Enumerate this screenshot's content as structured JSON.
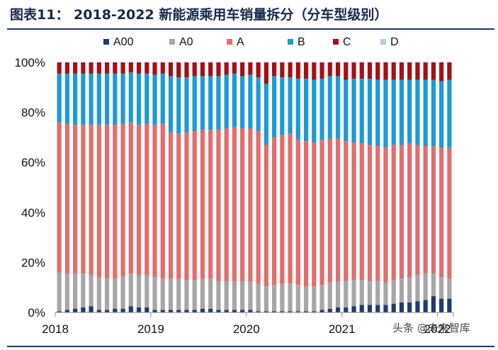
{
  "header": {
    "title": "图表11：  2018-2022 新能源乘用车销量拆分（分车型级别）"
  },
  "watermark": {
    "text": "头条 @未来智库"
  },
  "chart_data": {
    "type": "stacked-bar",
    "title": "2018-2022 新能源乘用车销量拆分（分车型级别）",
    "xlabel": "",
    "ylabel": "",
    "ylim": [
      0,
      100
    ],
    "yticks": [
      0,
      20,
      40,
      60,
      80,
      100
    ],
    "ytick_labels": [
      "0%",
      "20%",
      "40%",
      "60%",
      "80%",
      "100%"
    ],
    "xtick_labels": [
      "2018",
      "2019",
      "2020",
      "2021",
      "2022"
    ],
    "xtick_at_index": [
      0,
      12,
      24,
      36,
      48
    ],
    "legend_position": "top",
    "categories": [
      "2018-01",
      "2018-02",
      "2018-03",
      "2018-04",
      "2018-05",
      "2018-06",
      "2018-07",
      "2018-08",
      "2018-09",
      "2018-10",
      "2018-11",
      "2018-12",
      "2019-01",
      "2019-02",
      "2019-03",
      "2019-04",
      "2019-05",
      "2019-06",
      "2019-07",
      "2019-08",
      "2019-09",
      "2019-10",
      "2019-11",
      "2019-12",
      "2020-01",
      "2020-02",
      "2020-03",
      "2020-04",
      "2020-05",
      "2020-06",
      "2020-07",
      "2020-08",
      "2020-09",
      "2020-10",
      "2020-11",
      "2020-12",
      "2021-01",
      "2021-02",
      "2021-03",
      "2021-04",
      "2021-05",
      "2021-06",
      "2021-07",
      "2021-08",
      "2021-09",
      "2021-10",
      "2021-11",
      "2021-12",
      "2022-01",
      "2022-02"
    ],
    "series": [
      {
        "name": "A00",
        "color": "#1f3b73",
        "values": [
          0.5,
          1,
          1.5,
          2,
          2.5,
          1,
          1,
          1.5,
          1.5,
          2.5,
          2,
          2,
          1,
          1,
          1,
          1,
          1,
          1,
          1.5,
          1.5,
          1,
          1,
          1,
          1,
          1,
          0.5,
          0.5,
          0.5,
          0.5,
          0.5,
          0.5,
          0.5,
          0.5,
          1,
          1.5,
          2,
          2,
          2.5,
          3,
          3,
          3,
          3,
          3.5,
          4,
          4,
          4.5,
          5,
          6.5,
          5.5,
          5.5
        ]
      },
      {
        "name": "A0",
        "color": "#a6a6a6",
        "values": [
          15.5,
          14.5,
          14,
          13.5,
          12.5,
          13,
          12.5,
          12,
          13,
          13,
          13,
          13,
          13,
          12.5,
          12.5,
          12.5,
          12,
          12,
          12,
          12,
          11.5,
          11.5,
          11.5,
          11.5,
          11.5,
          11,
          10,
          10.5,
          11,
          11,
          10.5,
          10,
          10,
          10,
          10.5,
          10.5,
          10.5,
          10.5,
          10,
          9.5,
          9.5,
          9,
          9.5,
          9.5,
          10,
          10.5,
          10.5,
          9,
          8.5,
          8
        ]
      },
      {
        "name": "A",
        "color": "#e46c6c",
        "values": [
          60,
          60,
          59.5,
          59.5,
          60,
          61,
          61.5,
          61.5,
          61,
          60.5,
          60,
          60.5,
          61,
          62,
          58.5,
          58,
          59,
          59.5,
          59.5,
          59.5,
          60.5,
          61,
          61.5,
          61,
          61,
          61,
          56.5,
          59,
          59.5,
          60,
          58,
          58,
          57.5,
          58,
          57.5,
          57,
          56,
          55,
          54.5,
          54.5,
          54,
          54,
          54,
          53.5,
          53.5,
          52,
          51,
          51,
          52,
          52.5
        ]
      },
      {
        "name": "B",
        "color": "#1c9ad6",
        "values": [
          19.5,
          20,
          20.5,
          20.5,
          20.5,
          20.5,
          20.5,
          20.5,
          20,
          20,
          20.5,
          20,
          20,
          20,
          22.5,
          22.5,
          22,
          22,
          21.5,
          21.5,
          21.5,
          21.5,
          21.5,
          21,
          21.5,
          21.5,
          24.5,
          24.5,
          23,
          22.5,
          24.5,
          25,
          25,
          24.5,
          25,
          25,
          24.5,
          25.5,
          26,
          26.5,
          26.5,
          27,
          26,
          26,
          25.5,
          26,
          26.5,
          26.5,
          26.5,
          27
        ]
      },
      {
        "name": "C",
        "color": "#a50f15",
        "values": [
          4.5,
          4.5,
          4.5,
          4.5,
          4.5,
          4.5,
          4.5,
          4.5,
          4.5,
          4,
          4.5,
          4.5,
          5,
          4.5,
          5.5,
          6,
          6,
          5.5,
          5.5,
          5.5,
          5.5,
          5,
          4.5,
          5.5,
          5,
          6,
          8.5,
          5.5,
          6,
          6,
          6.5,
          6.5,
          7,
          6.5,
          5.5,
          5.5,
          7,
          6.5,
          6.5,
          6.5,
          7,
          7,
          7,
          7,
          7,
          7,
          7,
          7,
          7.5,
          7
        ]
      },
      {
        "name": "D",
        "color": "#a9d2e8",
        "values": [
          0,
          0,
          0,
          0,
          0,
          0,
          0,
          0,
          0,
          0,
          0,
          0,
          0,
          0,
          0,
          0,
          0,
          0,
          0,
          0,
          0,
          0,
          0,
          0,
          0,
          0,
          0,
          0,
          0,
          0,
          0,
          0,
          0,
          0,
          0,
          0,
          0,
          0,
          0,
          0,
          0,
          0,
          0,
          0,
          0,
          0,
          0,
          0,
          0,
          0
        ]
      }
    ]
  }
}
